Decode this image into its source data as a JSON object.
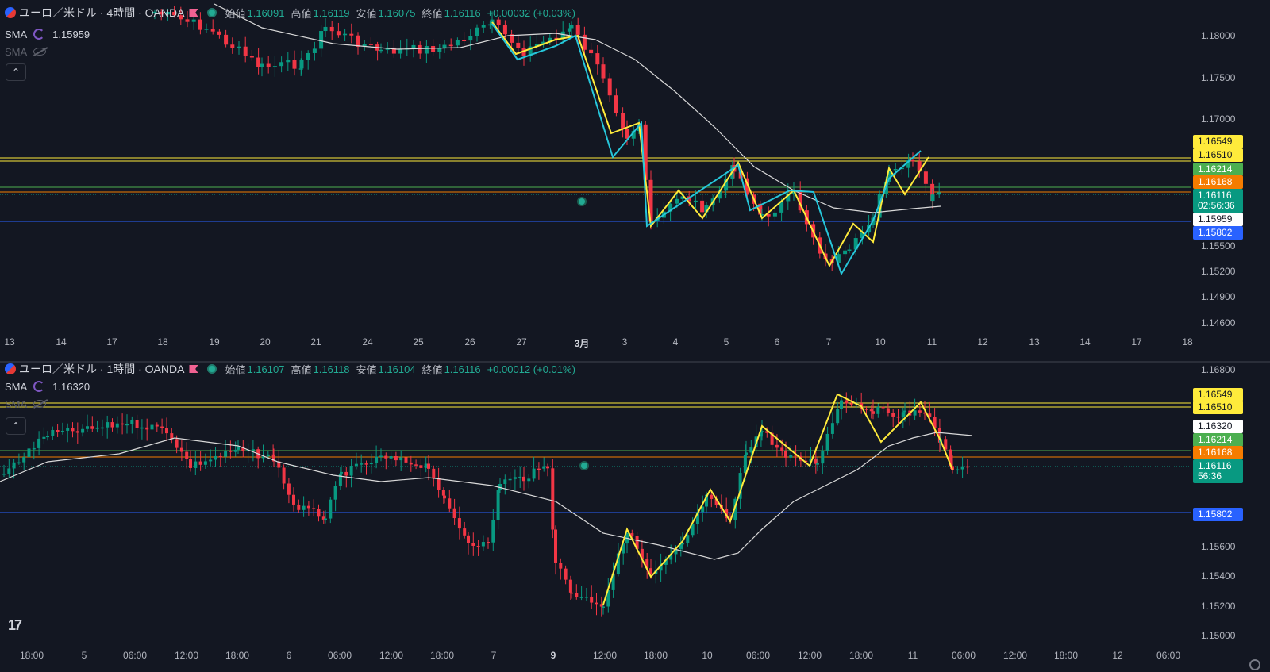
{
  "top": {
    "title": "ユーロ／米ドル · 4時間 · OANDA",
    "ohlc": {
      "o_label": "始値",
      "o": "1.16091",
      "h_label": "高値",
      "h": "1.16119",
      "l_label": "安値",
      "l": "1.16075",
      "c_label": "終値",
      "c": "1.16116",
      "chg": "+0.00032 (+0.03%)"
    },
    "indicators": [
      {
        "name": "SMA",
        "value": "1.15959",
        "visible": true
      },
      {
        "name": "SMA",
        "value": "",
        "visible": false
      }
    ],
    "collapse_icon": "chevron-up-icon",
    "price_axis": [
      "1.18000",
      "1.17500",
      "1.17000",
      "1.15500",
      "1.15200",
      "1.14900",
      "1.14600"
    ],
    "price_tags": [
      {
        "text": "1.16549",
        "bg": "#ffeb3b",
        "fg": "#131722"
      },
      {
        "text": "1.16510",
        "bg": "#ffeb3b",
        "fg": "#131722"
      },
      {
        "text": "1.16214",
        "bg": "#4caf50",
        "fg": "#ffffff"
      },
      {
        "text": "1.16168",
        "bg": "#f57c00",
        "fg": "#ffffff"
      },
      {
        "text": "1.16116",
        "sub": "02:56:36",
        "bg": "#089981",
        "fg": "#ffffff"
      },
      {
        "text": "1.15959",
        "bg": "#ffffff",
        "fg": "#131722"
      },
      {
        "text": "1.15802",
        "bg": "#2962ff",
        "fg": "#ffffff"
      }
    ],
    "time_axis": [
      "13",
      "14",
      "17",
      "18",
      "19",
      "20",
      "21",
      "24",
      "25",
      "26",
      "27",
      "3月",
      "3",
      "4",
      "5",
      "6",
      "7",
      "10",
      "11",
      "12",
      "13",
      "14",
      "17",
      "18"
    ]
  },
  "bottom": {
    "title": "ユーロ／米ドル · 1時間 · OANDA",
    "ohlc": {
      "o_label": "始値",
      "o": "1.16107",
      "h_label": "高値",
      "h": "1.16118",
      "l_label": "安値",
      "l": "1.16104",
      "c_label": "終値",
      "c": "1.16116",
      "chg": "+0.00012 (+0.01%)"
    },
    "indicators": [
      {
        "name": "SMA",
        "value": "1.16320",
        "visible": true
      },
      {
        "name": "SMA",
        "value": "",
        "visible": false
      }
    ],
    "collapse_icon": "chevron-up-icon",
    "price_axis": [
      "1.16800",
      "1.15600",
      "1.15400",
      "1.15200",
      "1.15000"
    ],
    "price_tags": [
      {
        "text": "1.16549",
        "bg": "#ffeb3b",
        "fg": "#131722"
      },
      {
        "text": "1.16510",
        "bg": "#ffeb3b",
        "fg": "#131722"
      },
      {
        "text": "1.16320",
        "bg": "#ffffff",
        "fg": "#131722"
      },
      {
        "text": "1.16214",
        "bg": "#4caf50",
        "fg": "#ffffff"
      },
      {
        "text": "1.16168",
        "bg": "#f57c00",
        "fg": "#ffffff"
      },
      {
        "text": "1.16116",
        "sub": "56:36",
        "bg": "#089981",
        "fg": "#ffffff"
      },
      {
        "text": "1.15802",
        "bg": "#2962ff",
        "fg": "#ffffff"
      }
    ],
    "time_axis": [
      "18:00",
      "5",
      "06:00",
      "12:00",
      "18:00",
      "6",
      "06:00",
      "12:00",
      "18:00",
      "7",
      "9",
      "12:00",
      "18:00",
      "10",
      "06:00",
      "12:00",
      "18:00",
      "11",
      "06:00",
      "12:00",
      "18:00",
      "12",
      "06:00"
    ]
  },
  "colors": {
    "up": "#089981",
    "down": "#f23645",
    "bg": "#131722",
    "sma": "#d9d9d9",
    "yellow": "#ffeb3b",
    "cyan": "#26c6da",
    "green_line": "#4caf50",
    "orange_line": "#f57c00",
    "blue_line": "#2962ff"
  },
  "brand_icon": "tradingview-logo",
  "settings_icon": "gear-icon"
}
